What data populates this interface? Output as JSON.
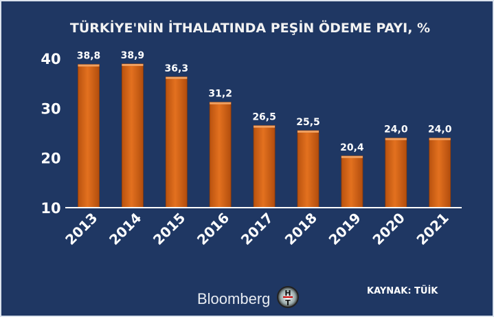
{
  "chart_data": {
    "type": "bar",
    "title": "TÜRKİYE'NİN İTHALATINDA PEŞİN ÖDEME PAYI, %",
    "categories": [
      "2013",
      "2014",
      "2015",
      "2016",
      "2017",
      "2018",
      "2019",
      "2020",
      "2021"
    ],
    "values": [
      38.8,
      38.9,
      36.3,
      31.2,
      26.5,
      25.5,
      20.4,
      24.0,
      24.0
    ],
    "data_labels": [
      "38,8",
      "38,9",
      "36,3",
      "31,2",
      "26,5",
      "25,5",
      "20,4",
      "24,0",
      "24,0"
    ],
    "ylim": [
      10,
      40
    ],
    "yticks": [
      "10",
      "20",
      "30",
      "40"
    ],
    "xlabel": "",
    "ylabel": "",
    "grid": false,
    "colors": {
      "bar": "#d9661a",
      "background": "#1f3763"
    }
  },
  "footer": {
    "brand": "Bloomberg",
    "logo_letters": "HT",
    "source": "KAYNAK: TÜİK"
  }
}
